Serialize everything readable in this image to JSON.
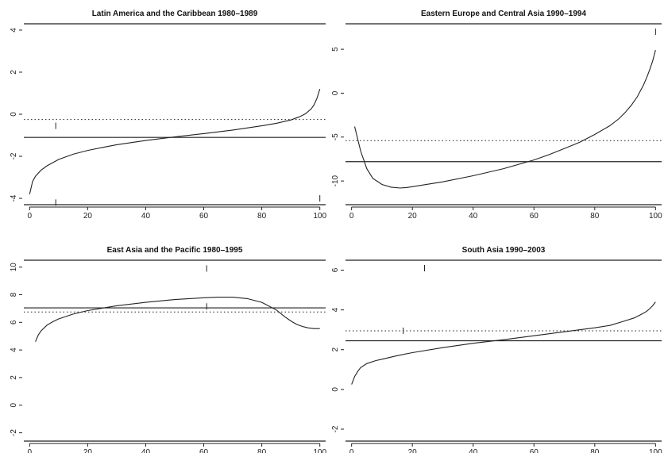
{
  "chart_data": [
    {
      "type": "line",
      "title": "Latin America and the Caribbean 1980–1989",
      "xlabel": "",
      "ylabel": "",
      "xlim": [
        -2,
        102
      ],
      "ylim": [
        -4.3,
        4.3
      ],
      "xticks": [
        0,
        20,
        40,
        60,
        80,
        100
      ],
      "yticks": [
        -4,
        -2,
        0,
        2,
        4
      ],
      "yticklabels": [
        "-4",
        "-2",
        "0",
        "2",
        "4"
      ],
      "frame_lines": [
        -4.3,
        4.3
      ],
      "solid_hline": -1.1,
      "dotted_hline": -0.25,
      "rug_marks": [
        [
          9,
          -0.55
        ],
        [
          9,
          -4.2
        ],
        [
          100,
          -4.0
        ]
      ],
      "series": [
        {
          "x": [
            0,
            1,
            2,
            4,
            6,
            8,
            10,
            15,
            20,
            25,
            30,
            40,
            50,
            60,
            70,
            80,
            85,
            90,
            93,
            95,
            97,
            98,
            99,
            100
          ],
          "y": [
            -3.8,
            -3.2,
            -2.95,
            -2.65,
            -2.45,
            -2.3,
            -2.15,
            -1.9,
            -1.72,
            -1.58,
            -1.45,
            -1.25,
            -1.08,
            -0.92,
            -0.75,
            -0.55,
            -0.43,
            -0.27,
            -0.12,
            0.02,
            0.25,
            0.45,
            0.75,
            1.2
          ]
        }
      ]
    },
    {
      "type": "line",
      "title": "Eastern Europe and Central Asia 1990–1994",
      "xlabel": "",
      "ylabel": "",
      "xlim": [
        -2,
        102
      ],
      "ylim": [
        -12.7,
        7.9
      ],
      "xticks": [
        0,
        20,
        40,
        60,
        80,
        100
      ],
      "yticks": [
        -10,
        -5,
        0,
        5
      ],
      "yticklabels": [
        "-10",
        "-5",
        "0",
        "5"
      ],
      "frame_lines": [
        -12.7,
        7.9
      ],
      "solid_hline": -7.8,
      "dotted_hline": -5.4,
      "rug_marks": [
        [
          100,
          7.0
        ]
      ],
      "series": [
        {
          "x": [
            1,
            2,
            3,
            5,
            7,
            10,
            13,
            16,
            18,
            20,
            30,
            40,
            50,
            60,
            65,
            70,
            75,
            80,
            85,
            88,
            90,
            92,
            94,
            96,
            97,
            98,
            99,
            100
          ],
          "y": [
            -3.8,
            -5.2,
            -6.6,
            -8.6,
            -9.7,
            -10.4,
            -10.7,
            -10.8,
            -10.75,
            -10.65,
            -10.1,
            -9.4,
            -8.6,
            -7.6,
            -7.0,
            -6.3,
            -5.6,
            -4.7,
            -3.7,
            -2.9,
            -2.2,
            -1.4,
            -0.4,
            0.9,
            1.7,
            2.6,
            3.6,
            4.9
          ]
        }
      ]
    },
    {
      "type": "line",
      "title": "East Asia and the Pacific 1980–1995",
      "xlabel": "",
      "ylabel": "",
      "xlim": [
        -2,
        102
      ],
      "ylim": [
        -2.6,
        10.5
      ],
      "xticks": [
        0,
        20,
        40,
        60,
        80,
        100
      ],
      "yticks": [
        -2,
        0,
        2,
        4,
        6,
        8,
        10
      ],
      "yticklabels": [
        "-2",
        "0",
        "2",
        "4",
        "6",
        "8",
        "10"
      ],
      "frame_lines": [
        -2.6,
        10.5
      ],
      "solid_hline": 7.05,
      "dotted_hline": 6.75,
      "rug_marks": [
        [
          61,
          9.9
        ],
        [
          61,
          7.15
        ]
      ],
      "series": [
        {
          "x": [
            2,
            3,
            4,
            6,
            8,
            10,
            15,
            20,
            30,
            40,
            50,
            60,
            65,
            70,
            75,
            80,
            85,
            88,
            90,
            92,
            94,
            96,
            98,
            100
          ],
          "y": [
            4.6,
            5.1,
            5.4,
            5.8,
            6.05,
            6.25,
            6.6,
            6.85,
            7.2,
            7.45,
            7.65,
            7.78,
            7.82,
            7.82,
            7.72,
            7.45,
            6.9,
            6.4,
            6.1,
            5.85,
            5.7,
            5.6,
            5.55,
            5.55
          ]
        }
      ]
    },
    {
      "type": "line",
      "title": "South Asia 1990–2003",
      "xlabel": "",
      "ylabel": "",
      "xlim": [
        -2,
        102
      ],
      "ylim": [
        -2.6,
        6.5
      ],
      "xticks": [
        0,
        20,
        40,
        60,
        80,
        100
      ],
      "yticks": [
        -2,
        0,
        2,
        4,
        6
      ],
      "yticklabels": [
        "-2",
        "0",
        "2",
        "4",
        "6"
      ],
      "frame_lines": [
        -2.6,
        6.5
      ],
      "solid_hline": 2.45,
      "dotted_hline": 2.95,
      "rug_marks": [
        [
          24,
          6.1
        ],
        [
          17,
          2.95
        ]
      ],
      "series": [
        {
          "x": [
            0,
            1,
            2,
            3,
            5,
            8,
            10,
            15,
            20,
            30,
            40,
            50,
            60,
            70,
            80,
            85,
            90,
            93,
            95,
            97,
            98,
            99,
            100
          ],
          "y": [
            0.25,
            0.65,
            0.9,
            1.1,
            1.3,
            1.45,
            1.52,
            1.7,
            1.85,
            2.1,
            2.32,
            2.5,
            2.7,
            2.9,
            3.1,
            3.22,
            3.45,
            3.6,
            3.75,
            3.92,
            4.05,
            4.2,
            4.4
          ]
        }
      ]
    }
  ]
}
